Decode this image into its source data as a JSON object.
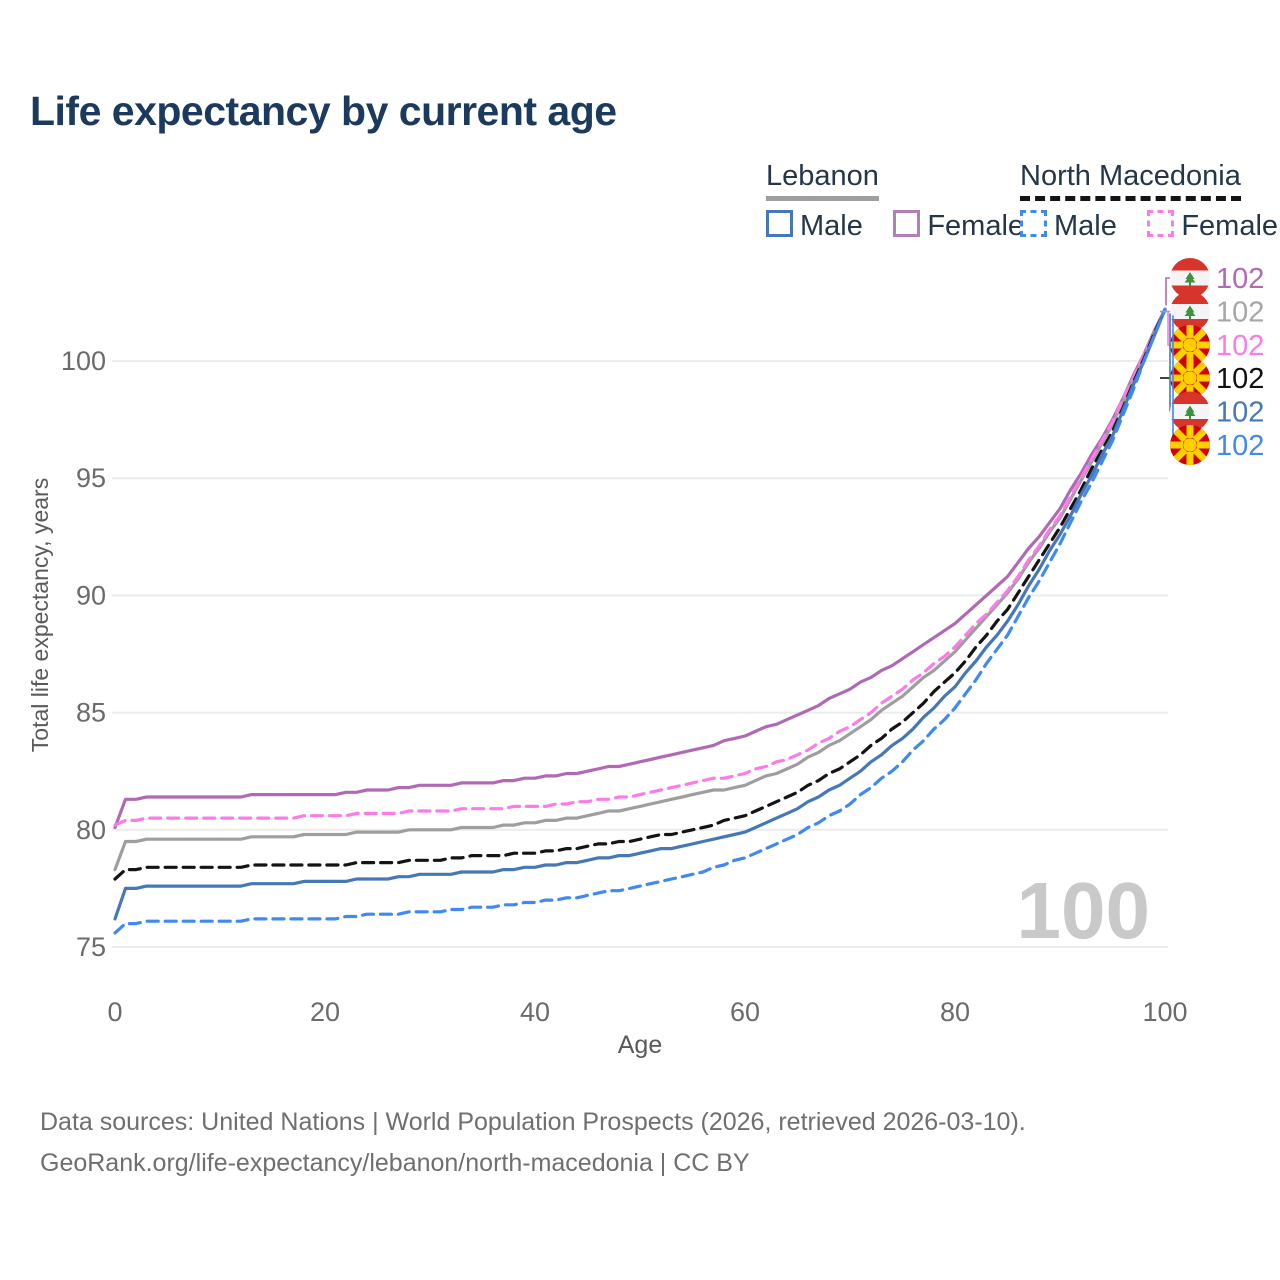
{
  "title": "Life expectancy by current age",
  "watermark": "100",
  "legend": {
    "groups": [
      {
        "label": "Lebanon",
        "underline": "solid",
        "underline_color": "#9e9e9e",
        "items": [
          {
            "label": "Male",
            "color": "#4678b8",
            "dash": false
          },
          {
            "label": "Female",
            "color": "#b27fb7",
            "dash": false
          }
        ]
      },
      {
        "label": "North Macedonia",
        "underline": "dashed",
        "underline_color": "#141414",
        "items": [
          {
            "label": "Male",
            "color": "#4189f2",
            "dash": true
          },
          {
            "label": "Female",
            "color": "#fb7ce8",
            "dash": true
          }
        ]
      }
    ]
  },
  "footer": {
    "line1": "Data sources: United Nations | World Population Prospects (2026, retrieved 2026-03-10).",
    "line2": "GeoRank.org/life-expectancy/lebanon/north-macedonia | CC BY"
  },
  "style": {
    "background": "#ffffff",
    "title_color": "#1c3a5e",
    "grid_color": "#ececec",
    "tick_color": "#6b6b6b",
    "axis_title_color": "#5a5a5a",
    "watermark_color": "#c9c9c9",
    "footer_color": "#6f6f6f",
    "lebanon_flag_red": "#d7342c",
    "lebanon_flag_green": "#3d9141",
    "macedonia_flag_red": "#d20000",
    "macedonia_flag_yellow": "#ffcf00"
  },
  "chart_data": {
    "type": "line",
    "title": "Life expectancy by current age",
    "xlabel": "Age",
    "ylabel": "Total life expectancy, years",
    "xlim": [
      0,
      100
    ],
    "ylim": [
      74,
      103
    ],
    "xticks": [
      0,
      20,
      40,
      60,
      80,
      100
    ],
    "yticks": [
      75,
      80,
      85,
      90,
      95,
      100
    ],
    "grid": "horizontal",
    "legend_position": "top-right",
    "x": [
      0,
      1,
      5,
      10,
      15,
      20,
      25,
      30,
      35,
      40,
      45,
      50,
      55,
      60,
      65,
      70,
      75,
      80,
      85,
      90,
      95,
      100
    ],
    "series": [
      {
        "name": "Lebanon Female",
        "country": "lebanon",
        "flag": "lebanon-flag-icon",
        "color": "#b06ab4",
        "dash": "solid",
        "end_label": "102",
        "values": [
          80.1,
          81.3,
          81.4,
          81.4,
          81.5,
          81.5,
          81.7,
          81.9,
          82.0,
          82.2,
          82.5,
          82.9,
          83.4,
          84.0,
          84.9,
          86.0,
          87.3,
          88.8,
          90.8,
          93.7,
          97.5,
          102.2
        ]
      },
      {
        "name": "Lebanon Both sexes",
        "country": "lebanon",
        "flag": "lebanon-flag-icon",
        "color": "#9e9e9e",
        "label_color": "#a6a6a6",
        "dash": "solid",
        "end_label": "102",
        "values": [
          78.3,
          79.5,
          79.6,
          79.6,
          79.7,
          79.8,
          79.9,
          80.0,
          80.1,
          80.3,
          80.6,
          81.0,
          81.5,
          81.9,
          82.8,
          84.1,
          85.7,
          87.6,
          90.1,
          93.3,
          97.3,
          102.2
        ]
      },
      {
        "name": "North Macedonia Female",
        "country": "north-macedonia",
        "flag": "north-macedonia-flag-icon",
        "color": "#fb7ce8",
        "dash": "dashed",
        "end_label": "102",
        "values": [
          80.2,
          80.4,
          80.5,
          80.5,
          80.5,
          80.6,
          80.7,
          80.8,
          80.9,
          81.0,
          81.2,
          81.5,
          82.0,
          82.4,
          83.2,
          84.4,
          86.0,
          87.8,
          90.2,
          93.4,
          97.4,
          102.2
        ]
      },
      {
        "name": "North Macedonia Both sexes",
        "country": "north-macedonia",
        "flag": "north-macedonia-flag-icon",
        "color": "#141414",
        "label_color": "#111111",
        "dash": "dashed",
        "end_label": "102",
        "values": [
          77.9,
          78.3,
          78.4,
          78.4,
          78.5,
          78.5,
          78.6,
          78.7,
          78.9,
          79.0,
          79.3,
          79.6,
          80.0,
          80.6,
          81.6,
          82.9,
          84.6,
          86.7,
          89.4,
          92.9,
          97.0,
          102.2
        ]
      },
      {
        "name": "Lebanon Male",
        "country": "lebanon",
        "flag": "lebanon-flag-icon",
        "color": "#4678b8",
        "dash": "solid",
        "end_label": "102",
        "values": [
          76.2,
          77.5,
          77.6,
          77.6,
          77.7,
          77.8,
          77.9,
          78.1,
          78.2,
          78.4,
          78.7,
          79.0,
          79.4,
          79.9,
          80.9,
          82.2,
          83.9,
          86.1,
          88.9,
          92.6,
          96.8,
          102.2
        ]
      },
      {
        "name": "North Macedonia Male",
        "country": "north-macedonia",
        "flag": "north-macedonia-flag-icon",
        "color": "#4189f2",
        "dash": "dashed",
        "end_label": "102",
        "values": [
          75.6,
          76.0,
          76.1,
          76.1,
          76.2,
          76.2,
          76.4,
          76.5,
          76.7,
          76.9,
          77.2,
          77.6,
          78.1,
          78.8,
          79.8,
          81.1,
          82.9,
          85.2,
          88.3,
          92.2,
          96.6,
          102.2
        ]
      }
    ]
  }
}
